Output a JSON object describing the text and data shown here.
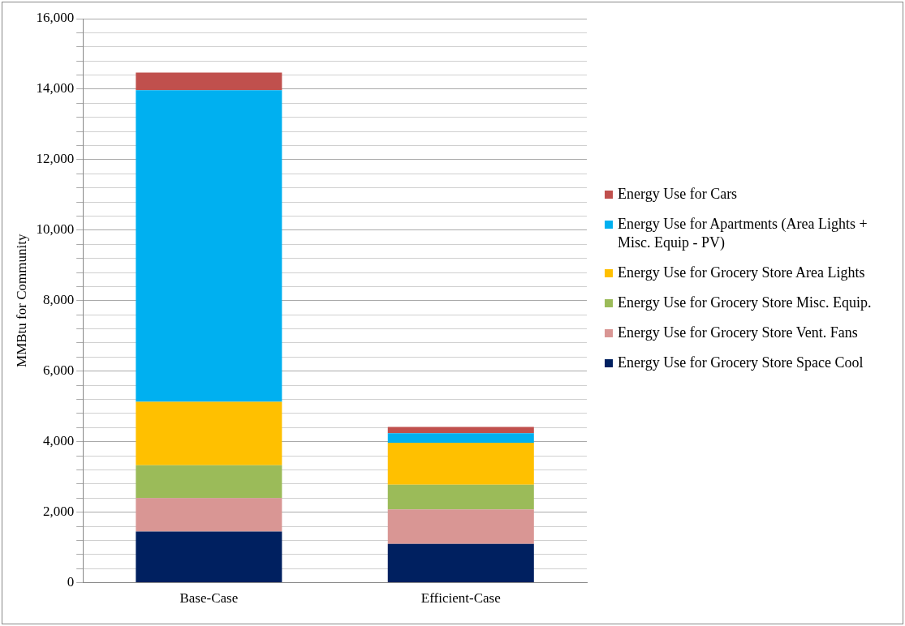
{
  "chart_data": {
    "type": "bar",
    "stacked": true,
    "ylabel": "MMBtu for Community",
    "categories": [
      "Base-Case",
      "Efficient-Case"
    ],
    "series": [
      {
        "name": "Energy Use for Grocery Store Space Cool",
        "color": "#002060",
        "values": [
          1450,
          1100
        ]
      },
      {
        "name": "Energy Use for Grocery Store Vent. Fans",
        "color": "#d99694",
        "values": [
          950,
          980
        ]
      },
      {
        "name": "Energy Use for Grocery Store Misc. Equip.",
        "color": "#9bbb59",
        "values": [
          930,
          700
        ]
      },
      {
        "name": "Energy Use for Grocery Store Area Lights",
        "color": "#ffc000",
        "values": [
          1800,
          1190
        ]
      },
      {
        "name": "Energy Use for Apartments (Area Lights + Misc. Equip - PV)",
        "color": "#00b0f0",
        "values": [
          8840,
          270
        ]
      },
      {
        "name": "Energy Use for Cars",
        "color": "#c0504d",
        "values": [
          500,
          180
        ]
      }
    ],
    "ylim": [
      0,
      16000
    ],
    "yticks": [
      0,
      {
        "value": 400,
        "label": null
      },
      {
        "value": 800,
        "label": null
      },
      {
        "value": 1200,
        "label": null
      },
      {
        "value": 1600,
        "label": null
      },
      {
        "value": 2000,
        "label": "2,000"
      },
      {
        "value": 2400,
        "label": null
      },
      {
        "value": 2800,
        "label": null
      },
      {
        "value": 3200,
        "label": null
      },
      {
        "value": 3600,
        "label": null
      },
      {
        "value": 4000,
        "label": "4,000"
      },
      {
        "value": 4400,
        "label": null
      },
      {
        "value": 4800,
        "label": null
      },
      {
        "value": 5200,
        "label": null
      },
      {
        "value": 5600,
        "label": null
      },
      {
        "value": 6000,
        "label": "6,000"
      },
      {
        "value": 6400,
        "label": null
      },
      {
        "value": 6800,
        "label": null
      },
      {
        "value": 7200,
        "label": null
      },
      {
        "value": 7600,
        "label": null
      },
      {
        "value": 8000,
        "label": "8,000"
      },
      {
        "value": 8400,
        "label": null
      },
      {
        "value": 8800,
        "label": null
      },
      {
        "value": 9200,
        "label": null
      },
      {
        "value": 9600,
        "label": null
      },
      {
        "value": 10000,
        "label": "10,000"
      },
      {
        "value": 10400,
        "label": null
      },
      {
        "value": 10800,
        "label": null
      },
      {
        "value": 11200,
        "label": null
      },
      {
        "value": 11600,
        "label": null
      },
      {
        "value": 12000,
        "label": "12,000"
      },
      {
        "value": 12400,
        "label": null
      },
      {
        "value": 12800,
        "label": null
      },
      {
        "value": 13200,
        "label": null
      },
      {
        "value": 13600,
        "label": null
      },
      {
        "value": 14000,
        "label": "14,000"
      },
      {
        "value": 14400,
        "label": null
      },
      {
        "value": 14800,
        "label": null
      },
      {
        "value": 15200,
        "label": null
      },
      {
        "value": 15600,
        "label": null
      },
      {
        "value": 16000,
        "label": "16,000"
      }
    ],
    "grid": "y",
    "legend": "right"
  }
}
